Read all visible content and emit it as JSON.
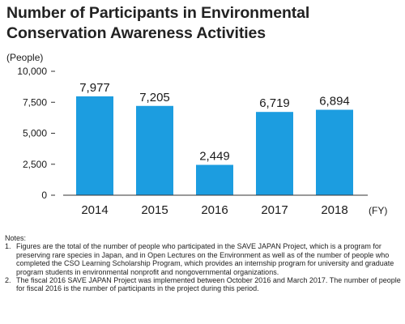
{
  "title": {
    "line1": "Number of Participants in Environmental",
    "line2": "Conservation Awareness Activities"
  },
  "colors": {
    "bar": "#1c9de0",
    "axis": "#333333",
    "text": "#1a1a1a"
  },
  "chart_data": {
    "type": "bar",
    "title": "Number of Participants in Environmental Conservation Awareness Activities",
    "ylabel": "(People)",
    "xlabel": "(FY)",
    "categories": [
      "2014",
      "2015",
      "2016",
      "2017",
      "2018"
    ],
    "values": [
      7977,
      7205,
      2449,
      6719,
      6894
    ],
    "value_labels": [
      "7,977",
      "7,205",
      "2,449",
      "6,719",
      "6,894"
    ],
    "ylim": [
      0,
      10000
    ],
    "yticks": [
      0,
      2500,
      5000,
      7500,
      10000
    ],
    "ytick_labels": [
      "0",
      "2,500",
      "5,000",
      "7,500",
      "10,000"
    ],
    "grid": false,
    "legend": "none"
  },
  "notes": {
    "heading": "Notes:",
    "items": [
      {
        "num": "1.",
        "text": "Figures are the total of the number of people who participated in the SAVE JAPAN Project, which is a program for preserving rare species in Japan, and in Open Lectures on the Environment as well as of the number of people who completed the CSO Learning Scholarship Program, which provides an internship program for university and graduate program students in environmental nonprofit and nongovernmental organizations."
      },
      {
        "num": "2.",
        "text": "The fiscal 2016 SAVE JAPAN Project was implemented between October 2016 and March 2017. The number of people for fiscal 2016 is the number of participants in the project during this period."
      }
    ]
  }
}
